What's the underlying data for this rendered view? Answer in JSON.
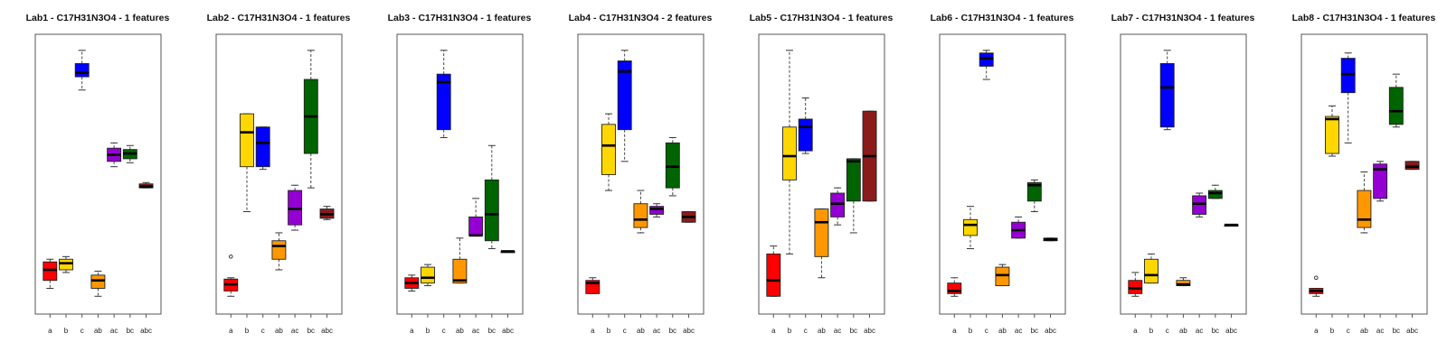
{
  "chart_data": [
    {
      "type": "box",
      "title": "Lab1 - C17H31N3O4 - 1 features",
      "categories": [
        "a",
        "b",
        "c",
        "ab",
        "ac",
        "bc",
        "abc"
      ],
      "colors": [
        "#ff0000",
        "#ffd700",
        "#0000ff",
        "#ff9800",
        "#9400d3",
        "#006400",
        "#8b1a1a"
      ],
      "ylim": [
        0,
        1
      ],
      "boxes": [
        {
          "min": 0.07,
          "q1": 0.1,
          "median": 0.14,
          "q3": 0.17,
          "max": 0.18,
          "outliers": []
        },
        {
          "min": 0.13,
          "q1": 0.14,
          "median": 0.165,
          "q3": 0.18,
          "max": 0.19,
          "outliers": []
        },
        {
          "min": 0.82,
          "q1": 0.87,
          "median": 0.885,
          "q3": 0.92,
          "max": 0.97,
          "outliers": []
        },
        {
          "min": 0.04,
          "q1": 0.07,
          "median": 0.1,
          "q3": 0.12,
          "max": 0.135,
          "outliers": []
        },
        {
          "min": 0.53,
          "q1": 0.55,
          "median": 0.575,
          "q3": 0.6,
          "max": 0.62,
          "outliers": []
        },
        {
          "min": 0.545,
          "q1": 0.56,
          "median": 0.58,
          "q3": 0.595,
          "max": 0.61,
          "outliers": []
        },
        {
          "min": 0.45,
          "q1": 0.45,
          "median": 0.455,
          "q3": 0.465,
          "max": 0.47,
          "outliers": []
        }
      ]
    },
    {
      "type": "box",
      "title": "Lab2 - C17H31N3O4 - 1 features",
      "categories": [
        "a",
        "b",
        "c",
        "ab",
        "ac",
        "bc",
        "abc"
      ],
      "colors": [
        "#ff0000",
        "#ffd700",
        "#0000ff",
        "#ff9800",
        "#9400d3",
        "#006400",
        "#8b1a1a"
      ],
      "ylim": [
        0,
        1
      ],
      "boxes": [
        {
          "min": 0.04,
          "q1": 0.06,
          "median": 0.085,
          "q3": 0.105,
          "max": 0.11,
          "outliers": [
            0.19
          ]
        },
        {
          "min": 0.36,
          "q1": 0.53,
          "median": 0.66,
          "q3": 0.73,
          "max": 0.73,
          "outliers": []
        },
        {
          "min": 0.52,
          "q1": 0.53,
          "median": 0.62,
          "q3": 0.68,
          "max": 0.68,
          "outliers": []
        },
        {
          "min": 0.14,
          "q1": 0.18,
          "median": 0.23,
          "q3": 0.25,
          "max": 0.28,
          "outliers": []
        },
        {
          "min": 0.29,
          "q1": 0.31,
          "median": 0.37,
          "q3": 0.44,
          "max": 0.46,
          "outliers": []
        },
        {
          "min": 0.45,
          "q1": 0.58,
          "median": 0.72,
          "q3": 0.86,
          "max": 0.97,
          "outliers": []
        },
        {
          "min": 0.33,
          "q1": 0.335,
          "median": 0.35,
          "q3": 0.37,
          "max": 0.38,
          "outliers": []
        }
      ]
    },
    {
      "type": "box",
      "title": "Lab3 - C17H31N3O4 - 1 features",
      "categories": [
        "a",
        "b",
        "c",
        "ab",
        "ac",
        "bc",
        "abc"
      ],
      "colors": [
        "#ff0000",
        "#ffd700",
        "#0000ff",
        "#ff9800",
        "#9400d3",
        "#006400",
        "#8b1a1a"
      ],
      "ylim": [
        0,
        1
      ],
      "boxes": [
        {
          "min": 0.06,
          "q1": 0.07,
          "median": 0.09,
          "q3": 0.11,
          "max": 0.12,
          "outliers": []
        },
        {
          "min": 0.08,
          "q1": 0.09,
          "median": 0.11,
          "q3": 0.15,
          "max": 0.16,
          "outliers": []
        },
        {
          "min": 0.64,
          "q1": 0.67,
          "median": 0.85,
          "q3": 0.88,
          "max": 0.97,
          "outliers": []
        },
        {
          "min": 0.09,
          "q1": 0.09,
          "median": 0.1,
          "q3": 0.18,
          "max": 0.26,
          "outliers": []
        },
        {
          "min": 0.27,
          "q1": 0.27,
          "median": 0.27,
          "q3": 0.34,
          "max": 0.41,
          "outliers": []
        },
        {
          "min": 0.22,
          "q1": 0.25,
          "median": 0.35,
          "q3": 0.48,
          "max": 0.61,
          "outliers": []
        },
        {
          "min": 0.21,
          "q1": 0.21,
          "median": 0.21,
          "q3": 0.21,
          "max": 0.21,
          "outliers": []
        }
      ]
    },
    {
      "type": "box",
      "title": "Lab4 - C17H31N3O4 - 2 features",
      "categories": [
        "a",
        "b",
        "c",
        "ab",
        "ac",
        "bc",
        "abc"
      ],
      "colors": [
        "#ff0000",
        "#ffd700",
        "#0000ff",
        "#ff9800",
        "#9400d3",
        "#006400",
        "#8b1a1a"
      ],
      "ylim": [
        0,
        1
      ],
      "boxes": [
        {
          "min": 0.05,
          "q1": 0.05,
          "median": 0.09,
          "q3": 0.1,
          "max": 0.11,
          "outliers": []
        },
        {
          "min": 0.44,
          "q1": 0.5,
          "median": 0.61,
          "q3": 0.69,
          "max": 0.73,
          "outliers": []
        },
        {
          "min": 0.55,
          "q1": 0.67,
          "median": 0.89,
          "q3": 0.93,
          "max": 0.97,
          "outliers": []
        },
        {
          "min": 0.28,
          "q1": 0.3,
          "median": 0.33,
          "q3": 0.39,
          "max": 0.44,
          "outliers": []
        },
        {
          "min": 0.34,
          "q1": 0.35,
          "median": 0.37,
          "q3": 0.38,
          "max": 0.39,
          "outliers": []
        },
        {
          "min": 0.42,
          "q1": 0.45,
          "median": 0.53,
          "q3": 0.62,
          "max": 0.64,
          "outliers": []
        },
        {
          "min": 0.32,
          "q1": 0.32,
          "median": 0.34,
          "q3": 0.36,
          "max": 0.36,
          "outliers": []
        }
      ]
    },
    {
      "type": "box",
      "title": "Lab5 - C17H31N3O4 - 1 features",
      "categories": [
        "a",
        "b",
        "c",
        "ab",
        "ac",
        "bc",
        "abc"
      ],
      "colors": [
        "#ff0000",
        "#ffd700",
        "#0000ff",
        "#ff9800",
        "#9400d3",
        "#006400",
        "#8b1a1a"
      ],
      "ylim": [
        0,
        1
      ],
      "boxes": [
        {
          "min": 0.04,
          "q1": 0.04,
          "median": 0.1,
          "q3": 0.2,
          "max": 0.23,
          "outliers": []
        },
        {
          "min": 0.2,
          "q1": 0.48,
          "median": 0.57,
          "q3": 0.68,
          "max": 0.97,
          "outliers": []
        },
        {
          "min": 0.58,
          "q1": 0.59,
          "median": 0.68,
          "q3": 0.71,
          "max": 0.79,
          "outliers": []
        },
        {
          "min": 0.11,
          "q1": 0.19,
          "median": 0.32,
          "q3": 0.37,
          "max": 0.37,
          "outliers": []
        },
        {
          "min": 0.31,
          "q1": 0.34,
          "median": 0.39,
          "q3": 0.43,
          "max": 0.45,
          "outliers": []
        },
        {
          "min": 0.28,
          "q1": 0.4,
          "median": 0.55,
          "q3": 0.56,
          "max": 0.56,
          "outliers": []
        },
        {
          "min": 0.4,
          "q1": 0.4,
          "median": 0.57,
          "q3": 0.74,
          "max": 0.74,
          "outliers": []
        }
      ]
    },
    {
      "type": "box",
      "title": "Lab6 - C17H31N3O4 - 1 features",
      "categories": [
        "a",
        "b",
        "c",
        "ab",
        "ac",
        "bc",
        "abc"
      ],
      "colors": [
        "#ff0000",
        "#ffd700",
        "#0000ff",
        "#ff9800",
        "#9400d3",
        "#006400",
        "#8b1a1a"
      ],
      "ylim": [
        0,
        1
      ],
      "boxes": [
        {
          "min": 0.04,
          "q1": 0.05,
          "median": 0.06,
          "q3": 0.09,
          "max": 0.11,
          "outliers": []
        },
        {
          "min": 0.22,
          "q1": 0.27,
          "median": 0.31,
          "q3": 0.33,
          "max": 0.38,
          "outliers": []
        },
        {
          "min": 0.86,
          "q1": 0.91,
          "median": 0.94,
          "q3": 0.96,
          "max": 0.97,
          "outliers": []
        },
        {
          "min": 0.08,
          "q1": 0.08,
          "median": 0.12,
          "q3": 0.15,
          "max": 0.16,
          "outliers": []
        },
        {
          "min": 0.26,
          "q1": 0.26,
          "median": 0.29,
          "q3": 0.32,
          "max": 0.34,
          "outliers": []
        },
        {
          "min": 0.36,
          "q1": 0.4,
          "median": 0.46,
          "q3": 0.47,
          "max": 0.48,
          "outliers": []
        },
        {
          "min": 0.25,
          "q1": 0.25,
          "median": 0.255,
          "q3": 0.26,
          "max": 0.26,
          "outliers": []
        }
      ]
    },
    {
      "type": "box",
      "title": "Lab7 - C17H31N3O4 - 1 features",
      "categories": [
        "a",
        "b",
        "c",
        "ab",
        "ac",
        "bc",
        "abc"
      ],
      "colors": [
        "#ff0000",
        "#ffd700",
        "#0000ff",
        "#ff9800",
        "#9400d3",
        "#006400",
        "#8b1a1a"
      ],
      "ylim": [
        0,
        1
      ],
      "boxes": [
        {
          "min": 0.04,
          "q1": 0.05,
          "median": 0.07,
          "q3": 0.1,
          "max": 0.13,
          "outliers": []
        },
        {
          "min": 0.09,
          "q1": 0.09,
          "median": 0.12,
          "q3": 0.18,
          "max": 0.2,
          "outliers": []
        },
        {
          "min": 0.67,
          "q1": 0.68,
          "median": 0.83,
          "q3": 0.92,
          "max": 0.97,
          "outliers": []
        },
        {
          "min": 0.08,
          "q1": 0.08,
          "median": 0.085,
          "q3": 0.1,
          "max": 0.11,
          "outliers": []
        },
        {
          "min": 0.34,
          "q1": 0.35,
          "median": 0.39,
          "q3": 0.42,
          "max": 0.43,
          "outliers": []
        },
        {
          "min": 0.41,
          "q1": 0.41,
          "median": 0.43,
          "q3": 0.44,
          "max": 0.46,
          "outliers": []
        },
        {
          "min": 0.31,
          "q1": 0.31,
          "median": 0.31,
          "q3": 0.31,
          "max": 0.31,
          "outliers": []
        }
      ]
    },
    {
      "type": "box",
      "title": "Lab8 - C17H31N3O4 - 1 features",
      "categories": [
        "a",
        "b",
        "c",
        "ab",
        "ac",
        "bc",
        "abc"
      ],
      "colors": [
        "#ff0000",
        "#ffd700",
        "#0000ff",
        "#ff9800",
        "#9400d3",
        "#006400",
        "#8b1a1a"
      ],
      "ylim": [
        0,
        1
      ],
      "boxes": [
        {
          "min": 0.04,
          "q1": 0.05,
          "median": 0.06,
          "q3": 0.07,
          "max": 0.07,
          "outliers": [
            0.11
          ]
        },
        {
          "min": 0.57,
          "q1": 0.58,
          "median": 0.71,
          "q3": 0.72,
          "max": 0.76,
          "outliers": []
        },
        {
          "min": 0.62,
          "q1": 0.81,
          "median": 0.88,
          "q3": 0.94,
          "max": 0.96,
          "outliers": []
        },
        {
          "min": 0.28,
          "q1": 0.3,
          "median": 0.33,
          "q3": 0.44,
          "max": 0.51,
          "outliers": []
        },
        {
          "min": 0.4,
          "q1": 0.41,
          "median": 0.52,
          "q3": 0.54,
          "max": 0.55,
          "outliers": []
        },
        {
          "min": 0.68,
          "q1": 0.69,
          "median": 0.74,
          "q3": 0.83,
          "max": 0.88,
          "outliers": []
        },
        {
          "min": 0.52,
          "q1": 0.52,
          "median": 0.53,
          "q3": 0.55,
          "max": 0.55,
          "outliers": []
        }
      ]
    }
  ]
}
